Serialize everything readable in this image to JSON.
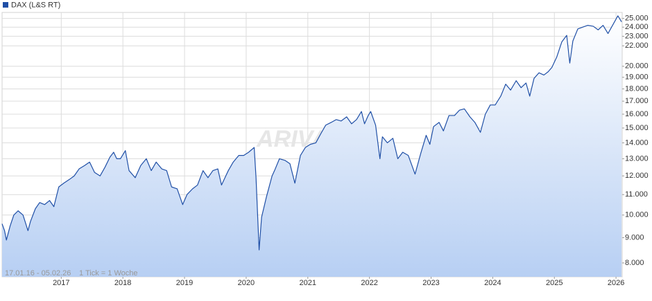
{
  "chart_data": {
    "type": "line",
    "watermark": "ARIVA.DE",
    "date_range": "17.01.16 - 05.02.26",
    "tick_note": "1 Tick = 1 Woche",
    "log_y": true,
    "grid": true,
    "legend": "top-left",
    "y_axis_side": "right",
    "xlim": [
      2016.04,
      2026.1
    ],
    "xticks": [
      2017,
      2018,
      2019,
      2020,
      2021,
      2022,
      2023,
      2024,
      2025,
      2026
    ],
    "ylim": [
      7500,
      25700
    ],
    "yticks": [
      {
        "value": 8000,
        "label": "8.000"
      },
      {
        "value": 9000,
        "label": "9.000"
      },
      {
        "value": 10000,
        "label": "10.000"
      },
      {
        "value": 11000,
        "label": "11.000"
      },
      {
        "value": 12000,
        "label": "12.000"
      },
      {
        "value": 13000,
        "label": "13.000"
      },
      {
        "value": 14000,
        "label": "14.000"
      },
      {
        "value": 15000,
        "label": "15.000"
      },
      {
        "value": 16000,
        "label": "16.000"
      },
      {
        "value": 17000,
        "label": "17.000"
      },
      {
        "value": 18000,
        "label": "18.000"
      },
      {
        "value": 19000,
        "label": "19.000"
      },
      {
        "value": 20000,
        "label": "20.000"
      },
      {
        "value": 22000,
        "label": "22.000"
      },
      {
        "value": 23000,
        "label": "23.000"
      },
      {
        "value": 24000,
        "label": "24.000"
      },
      {
        "value": 25000,
        "label": "25.000"
      }
    ],
    "x": [
      2016.04,
      2016.08,
      2016.11,
      2016.17,
      2016.23,
      2016.3,
      2016.38,
      2016.46,
      2016.5,
      2016.58,
      2016.65,
      2016.73,
      2016.81,
      2016.88,
      2016.96,
      2017.04,
      2017.13,
      2017.21,
      2017.29,
      2017.38,
      2017.46,
      2017.54,
      2017.63,
      2017.71,
      2017.79,
      2017.85,
      2017.9,
      2017.96,
      2018.04,
      2018.1,
      2018.2,
      2018.29,
      2018.38,
      2018.46,
      2018.54,
      2018.63,
      2018.71,
      2018.79,
      2018.88,
      2018.97,
      2019.04,
      2019.13,
      2019.21,
      2019.3,
      2019.38,
      2019.46,
      2019.54,
      2019.6,
      2019.71,
      2019.79,
      2019.88,
      2019.96,
      2020.04,
      2020.13,
      2020.16,
      2020.21,
      2020.25,
      2020.33,
      2020.42,
      2020.46,
      2020.54,
      2020.63,
      2020.71,
      2020.79,
      2020.88,
      2020.96,
      2021.04,
      2021.13,
      2021.21,
      2021.29,
      2021.38,
      2021.46,
      2021.54,
      2021.63,
      2021.71,
      2021.79,
      2021.87,
      2021.92,
      2021.98,
      2022.02,
      2022.1,
      2022.17,
      2022.21,
      2022.29,
      2022.38,
      2022.46,
      2022.54,
      2022.63,
      2022.74,
      2022.83,
      2022.92,
      2022.98,
      2023.04,
      2023.13,
      2023.2,
      2023.29,
      2023.38,
      2023.46,
      2023.54,
      2023.63,
      2023.71,
      2023.8,
      2023.88,
      2023.96,
      2024.04,
      2024.13,
      2024.21,
      2024.29,
      2024.38,
      2024.46,
      2024.54,
      2024.6,
      2024.67,
      2024.75,
      2024.83,
      2024.9,
      2024.96,
      2025.04,
      2025.12,
      2025.2,
      2025.25,
      2025.3,
      2025.38,
      2025.46,
      2025.54,
      2025.63,
      2025.71,
      2025.79,
      2025.87,
      2025.96,
      2026.03,
      2026.09
    ],
    "series": [
      {
        "name": "DAX (L&S RT)",
        "color": "#1f4fa6",
        "values": [
          9600,
          9300,
          8900,
          9500,
          10000,
          10200,
          10000,
          9300,
          9700,
          10300,
          10600,
          10500,
          10700,
          10400,
          11400,
          11600,
          11800,
          12000,
          12400,
          12600,
          12800,
          12200,
          12000,
          12500,
          13100,
          13400,
          13000,
          13000,
          13500,
          12300,
          11900,
          12600,
          13000,
          12300,
          12800,
          12400,
          12300,
          11400,
          11300,
          10500,
          11000,
          11300,
          11500,
          12300,
          11900,
          12300,
          12400,
          11500,
          12300,
          12800,
          13200,
          13200,
          13400,
          13700,
          11900,
          8500,
          9900,
          10900,
          12000,
          12300,
          13000,
          12900,
          12700,
          11600,
          13200,
          13700,
          13900,
          14000,
          14600,
          15200,
          15400,
          15600,
          15500,
          15800,
          15300,
          15600,
          16200,
          15300,
          15900,
          16200,
          15200,
          13000,
          14400,
          14000,
          14300,
          13000,
          13400,
          13200,
          12100,
          13300,
          14500,
          13900,
          15100,
          15400,
          14800,
          15900,
          15900,
          16300,
          16400,
          15800,
          15400,
          14700,
          16000,
          16700,
          16700,
          17400,
          18400,
          17900,
          18700,
          18100,
          18500,
          17400,
          18900,
          19400,
          19200,
          19500,
          19900,
          20900,
          22400,
          23100,
          20300,
          22500,
          23800,
          24000,
          24200,
          24100,
          23700,
          24200,
          23300,
          24400,
          25300,
          24600
        ]
      }
    ]
  }
}
